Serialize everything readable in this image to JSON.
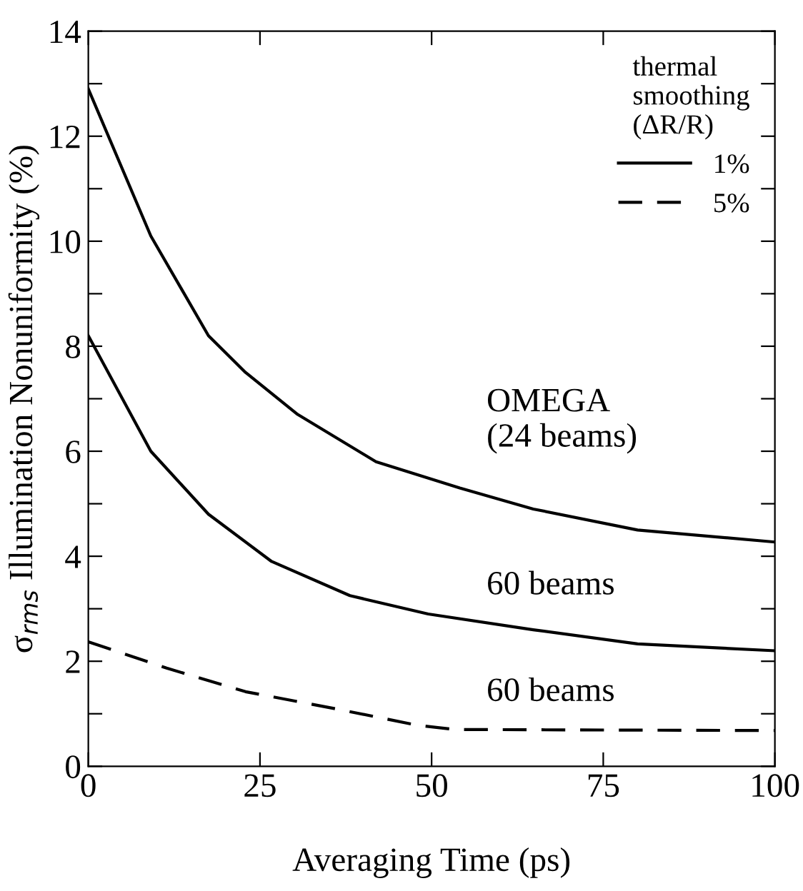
{
  "chart_data": {
    "type": "line",
    "xlabel": "Averaging Time (ps)",
    "ylabel": "σ$_{rms}$ Illumination Nonuniformity (%)",
    "xlim": [
      0,
      100
    ],
    "xticks": [
      0,
      25,
      50,
      75,
      100
    ],
    "ylim": [
      0,
      14
    ],
    "yticks": [
      0,
      {
        "value": 1,
        "label": null
      },
      2,
      {
        "value": 3,
        "label": null
      },
      4,
      {
        "value": 5,
        "label": null
      },
      6,
      {
        "value": 7,
        "label": null
      },
      8,
      {
        "value": 9,
        "label": null
      },
      10,
      {
        "value": 11,
        "label": null
      },
      12,
      {
        "value": 13,
        "label": null
      },
      14
    ],
    "legend": "top right",
    "legend_title": "thermal\nsmoothing\n(ΔR/R)",
    "grid": false,
    "series": [
      {
        "name": "1%",
        "color": "#000000",
        "line_style": "solid",
        "x": [
          0,
          9.1,
          17.5,
          22.9,
          30.5,
          41.9,
          54.1,
          64.8,
          80,
          100
        ],
        "values": [
          12.9,
          10.1,
          8.2,
          7.5,
          6.7,
          5.8,
          5.3,
          4.9,
          4.5,
          4.27
        ]
      },
      {
        "color": "#000000",
        "line_style": "solid",
        "x": [
          0,
          9.1,
          17.5,
          26.7,
          38.1,
          49.5,
          64.8,
          80,
          100
        ],
        "values": [
          8.2,
          6.0,
          4.8,
          3.9,
          3.25,
          2.9,
          2.6,
          2.33,
          2.2
        ]
      },
      {
        "name": "5%",
        "color": "#000000",
        "line_style": "dashed",
        "x": [
          0,
          11.4,
          22.9,
          35.8,
          48,
          53.4,
          100
        ],
        "values": [
          2.37,
          1.87,
          1.42,
          1.1,
          0.78,
          0.7,
          0.68
        ]
      }
    ],
    "annotations": [
      "OMEGA\n(24 beams)",
      "60 beams",
      "60 beams"
    ]
  }
}
